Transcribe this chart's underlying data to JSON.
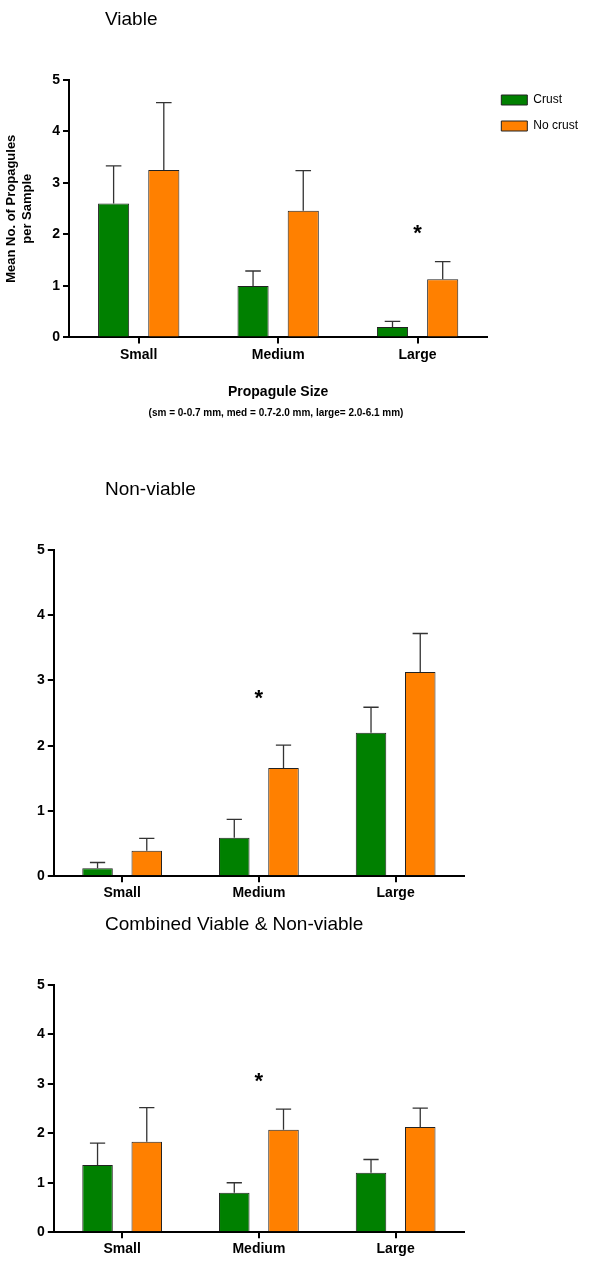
{
  "chart_data": [
    {
      "type": "bar",
      "title": "Viable",
      "xlabel": "Propagule Size",
      "ylabel": "Mean No. of Propagules per Sample",
      "categories": [
        "Small",
        "Medium",
        "Large"
      ],
      "series": [
        {
          "name": "Crust",
          "color": "#008000",
          "values": [
            2.6,
            1.0,
            0.2
          ],
          "errors": [
            [
              2.6,
              3.33
            ],
            [
              1.0,
              1.29
            ],
            [
              0.2,
              0.31
            ]
          ]
        },
        {
          "name": "No crust",
          "color": "#ff8000",
          "values": [
            3.25,
            2.46,
            1.13
          ],
          "errors": [
            [
              3.25,
              4.56
            ],
            [
              2.46,
              3.24
            ],
            [
              1.13,
              1.47
            ]
          ]
        }
      ],
      "ylim": [
        0,
        5
      ],
      "yticks": [
        0,
        1,
        2,
        3,
        4,
        5
      ],
      "grid": false,
      "legend": "top right",
      "annotations": [
        "*",
        "(sm = 0-0.7 mm, med = 0.7-2.0 mm, large= 2.0-6.1 mm)"
      ]
    },
    {
      "type": "bar",
      "title": "Non-viable",
      "categories": [
        "Small",
        "Medium",
        "Large"
      ],
      "series": [
        {
          "color": "#008000",
          "values": [
            0.12,
            0.59,
            2.2
          ],
          "errors": [
            [
              0.12,
              0.21
            ],
            [
              0.59,
              0.87
            ],
            [
              2.2,
              2.59
            ]
          ]
        },
        {
          "color": "#ff8000",
          "values": [
            0.39,
            1.66,
            3.13
          ],
          "errors": [
            [
              0.39,
              0.58
            ],
            [
              1.66,
              2.01
            ],
            [
              3.13,
              3.72
            ]
          ]
        }
      ],
      "ylim": [
        0,
        5
      ],
      "yticks": [
        0,
        1,
        2,
        3,
        4,
        5
      ],
      "grid": false,
      "legend": false,
      "annotations": [
        "*"
      ]
    },
    {
      "type": "bar",
      "title": "Combined Viable & Non-viable",
      "categories": [
        "Small",
        "Medium",
        "Large"
      ],
      "series": [
        {
          "color": "#008000",
          "values": [
            1.36,
            0.8,
            1.2
          ],
          "errors": [
            [
              1.36,
              1.8
            ],
            [
              0.8,
              1.0
            ],
            [
              1.2,
              1.47
            ]
          ]
        },
        {
          "color": "#ff8000",
          "values": [
            1.83,
            2.07,
            2.13
          ],
          "errors": [
            [
              1.83,
              2.52
            ],
            [
              2.07,
              2.49
            ],
            [
              2.13,
              2.51
            ]
          ]
        }
      ],
      "ylim": [
        0,
        5
      ],
      "yticks": [
        0,
        1,
        2,
        3,
        4,
        5
      ],
      "grid": false,
      "legend": false,
      "annotations": [
        "*"
      ]
    }
  ]
}
